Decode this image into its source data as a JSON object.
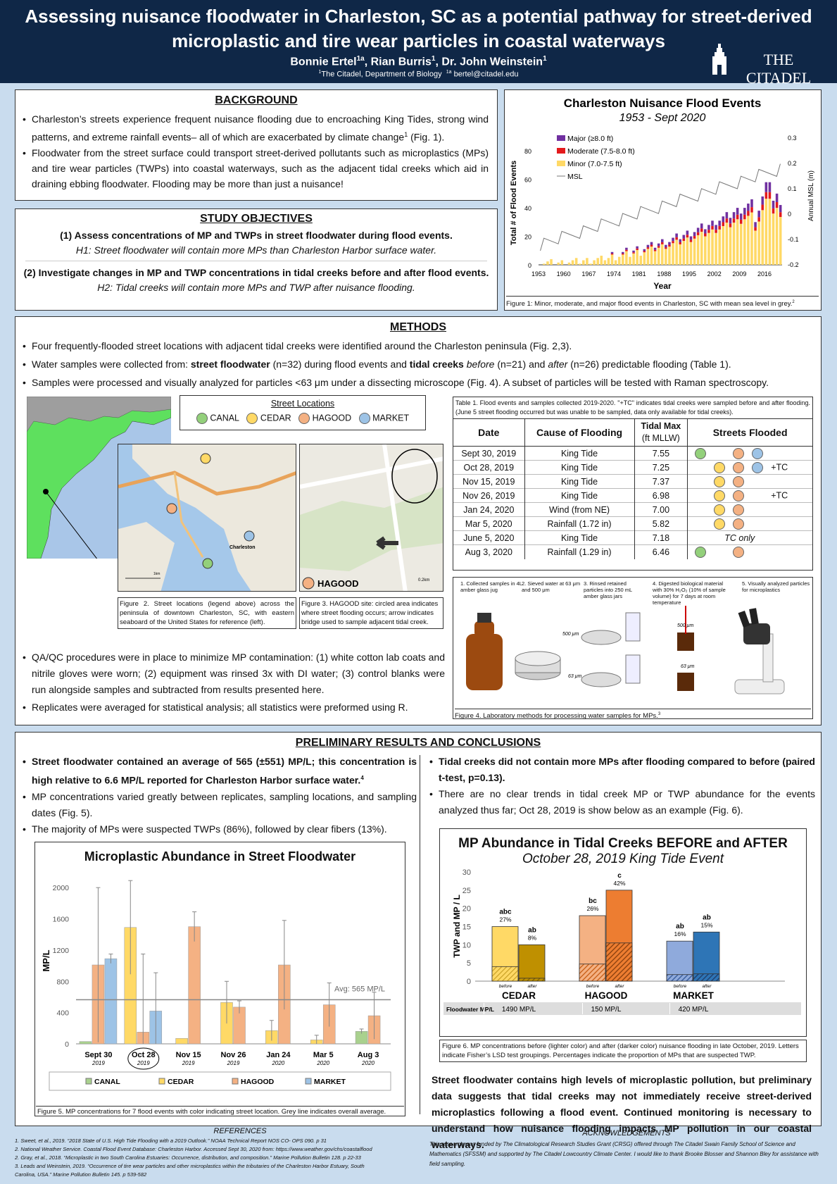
{
  "header": {
    "title_line1": "Assessing nuisance floodwater in Charleston, SC as a potential pathway for street-derived",
    "title_line2": "microplastic and tire wear particles in coastal waterways",
    "authors": "Bonnie Ertel",
    "a1_sup": "1a",
    "authors_2": ", Rian Burris",
    "a2_sup": "1",
    "authors_3": ", Dr. John Weinstein",
    "a3_sup": "1",
    "aff_sup": "1",
    "affiliation": "The Citadel, Department of Biology",
    "email_sup": "1a",
    "email": "bertel@citadel.edu",
    "logo_text": "THE CITADEL"
  },
  "background": {
    "title": "BACKGROUND",
    "b1": "Charleston’s streets experience frequent nuisance flooding due to encroaching King Tides, strong wind patterns, and extreme rainfall events– all of which are exacerbated by climate change",
    "b1_sup": "1",
    "b1_end": " (Fig. 1).",
    "b2": "Floodwater from the street surface could transport street-derived pollutants such as microplastics (MPs) and tire wear particles (TWPs) into coastal waterways, such as the adjacent tidal creeks which aid in draining ebbing floodwater. Flooding may be more than just a nuisance!"
  },
  "objectives": {
    "title": "STUDY OBJECTIVES",
    "o1": "(1) Assess concentrations of MP and TWPs in street floodwater during flood events.",
    "h1": "H1: Street floodwater will contain more MPs than Charleston Harbor surface water.",
    "o2": "(2) Investigate changes in MP and TWP concentrations in tidal creeks before and after flood events.",
    "h2": "H2: Tidal creeks will contain more MPs and TWP after nuisance flooding."
  },
  "fig1": {
    "title": "Charleston Nuisance Flood Events",
    "subtitle": "1953 - Sept 2020",
    "ylabel": "Total # of Flood Events",
    "y2label": "Annual MSL (m)",
    "xlabel": "Year",
    "legend": [
      "Major (≥8.0 ft)",
      "Moderate (7.5-8.0 ft)",
      "Minor (7.0-7.5 ft)",
      "MSL"
    ],
    "yticks": [
      "0",
      "20",
      "40",
      "60",
      "80"
    ],
    "y2ticks": [
      "-0.2",
      "-0.1",
      "0",
      "0.1",
      "0.2",
      "0.3"
    ],
    "xticks": [
      "1953",
      "1960",
      "1967",
      "1974",
      "1981",
      "1988",
      "1995",
      "2002",
      "2009",
      "2016"
    ],
    "caption": "Figure 1: Minor, moderate, and major flood events in Charleston, SC with mean sea level in grey.",
    "caption_sup": "2",
    "colors": {
      "major": "#7030a0",
      "moderate": "#e31a1c",
      "minor": "#ffd966",
      "msl": "#777777"
    }
  },
  "methods": {
    "title": "METHODS",
    "m1": "Four frequently-flooded street locations with adjacent tidal creeks were identified around the Charleston peninsula (Fig. 2,3).",
    "m2a": "Water samples were collected from: ",
    "m2b": "street floodwater",
    "m2c": " (n=32) during flood events and ",
    "m2d": "tidal creeks",
    "m2e": " ",
    "m2f": "before",
    "m2g": " (n=21) and ",
    "m2h": "after",
    "m2i": " (n=26) predictable flooding (Table 1).",
    "m3": "Samples were processed and visually analyzed for particles <63 μm under a dissecting microscope (Fig. 4). A subset of particles will be tested with Raman spectroscopy.",
    "qa": "QA/QC procedures were in place to minimize MP contamination: (1) white cotton lab coats and nitrile gloves were worn; (2) equipment was rinsed 3x with DI water; (3) control blanks were run alongside samples and subtracted from results presented here.",
    "rep": "Replicates were averaged for statistical analysis; all statistics were preformed using R."
  },
  "map": {
    "legend_title": "Street Locations",
    "sites": [
      "CANAL",
      "CEDAR",
      "HAGOOD",
      "MARKET"
    ],
    "city": "Charleston",
    "scale": "1km",
    "hagood": "HAGOOD",
    "hscale": "0.2km",
    "fig2": "Figure 2. Street locations (legend above) across the peninsula of downtown Charleston, SC, with eastern seaboard of the United States for reference (left).",
    "fig3": "Figure 3. HAGOOD site: circled area indicates where street flooding occurs; arrow indicates bridge used to sample adjacent tidal creek."
  },
  "table1": {
    "caption": "Table 1. Flood events and samples collected 2019-2020. \"+TC\" indicates tidal creeks were sampled before and after flooding. (June 5 street flooding occurred but was unable to be sampled, data only available for tidal creeks).",
    "headers": [
      "Date",
      "Cause of Flooding",
      "Tidal Max",
      "(ft MLLW)",
      "Streets Flooded"
    ],
    "rows": [
      {
        "date": "Sept 30, 2019",
        "cause": "King Tide",
        "max": "7.55",
        "dots": [
          "c",
          "h",
          "m"
        ],
        "tc": ""
      },
      {
        "date": "Oct 28, 2019",
        "cause": "King Tide",
        "max": "7.25",
        "dots": [
          "e",
          "h",
          "m"
        ],
        "tc": "+TC"
      },
      {
        "date": "Nov 15, 2019",
        "cause": "King Tide",
        "max": "7.37",
        "dots": [
          "e",
          "h"
        ],
        "tc": ""
      },
      {
        "date": "Nov 26, 2019",
        "cause": "King Tide",
        "max": "6.98",
        "dots": [
          "e",
          "h"
        ],
        "tc": "+TC"
      },
      {
        "date": "Jan 24, 2020",
        "cause": "Wind (from NE)",
        "max": "7.00",
        "dots": [
          "e",
          "h"
        ],
        "tc": ""
      },
      {
        "date": "Mar 5,  2020",
        "cause": "Rainfall (1.72 in)",
        "max": "5.82",
        "dots": [
          "e",
          "h"
        ],
        "tc": ""
      },
      {
        "date": "June 5,  2020",
        "cause": "King Tide",
        "max": "7.18",
        "dots": [],
        "tc": "TC only"
      },
      {
        "date": "Aug 3, 2020",
        "cause": "Rainfall (1.29 in)",
        "max": "6.46",
        "dots": [
          "c",
          "h"
        ],
        "tc": ""
      }
    ]
  },
  "fig4": {
    "steps": [
      "1. Collected samples in 4L amber glass jug",
      "2. Sieved water at 63 μm and 500 μm",
      "3. Rinsed retained particles into 250 mL amber glass jars",
      "4. Digested biological material with 30% H₂O₂ (10% of sample volume) for 7 days at room temperature",
      "5. Visually analyzed particles for microplastics"
    ],
    "l500": "500 μm",
    "l63": "63 μm",
    "caption": "Figure 4.  Laboratory methods for processing water samples for MPs.",
    "caption_sup": "3"
  },
  "results": {
    "title": "PRELIMINARY RESULTS AND CONCLUSIONS",
    "r1": "Street floodwater contained an average of 565 (±551) MP/L; this concentration is high relative to 6.6 MP/L reported for Charleston Harbor surface water.",
    "r1_sup": "4",
    "r2": "MP concentrations varied greatly between replicates, sampling locations, and sampling dates (Fig. 5).",
    "r3": "The majority of MPs were suspected TWPs (86%), followed by clear fibers (13%).",
    "r4": "Tidal creeks did not contain more MPs after flooding compared to before (paired t-test, p=0.13).",
    "r5": "There are no clear trends in tidal creek MP or TWP abundance for the events analyzed thus far; Oct 28, 2019 is show below as an example (Fig. 6).",
    "conclusion": "Street floodwater contains high levels of microplastic pollution, but preliminary data suggests that tidal creeks may not immediately receive street-derived microplastics following a flood event. Continued monitoring is necessary to understand how nuisance flooding impacts MP pollution in our coastal waterways."
  },
  "chart_data": [
    {
      "type": "bar",
      "title": "Microplastic Abundance in Street Floodwater",
      "ylabel": "MP/L",
      "ylim": [
        0,
        2200
      ],
      "yticks": [
        0,
        400,
        800,
        1200,
        1600,
        2000
      ],
      "categories": [
        "Sept 30",
        "Oct 28",
        "Nov 15",
        "Nov 26",
        "Jan 24",
        "Mar 5",
        "Aug 3"
      ],
      "years": [
        "2019",
        "2019",
        "2019",
        "2019",
        "2020",
        "2020",
        "2020"
      ],
      "series": [
        {
          "name": "CANAL",
          "color": "#a9d18e",
          "values": [
            30,
            null,
            null,
            null,
            null,
            null,
            160
          ],
          "err": [
            0,
            null,
            null,
            null,
            null,
            null,
            30
          ]
        },
        {
          "name": "CEDAR",
          "color": "#ffd966",
          "values": [
            null,
            1490,
            70,
            530,
            170,
            50,
            null
          ],
          "err": [
            null,
            600,
            0,
            270,
            130,
            60,
            null
          ]
        },
        {
          "name": "HAGOOD",
          "color": "#f4b183",
          "values": [
            1010,
            150,
            1500,
            470,
            1010,
            500,
            360
          ],
          "err": [
            990,
            1000,
            190,
            80,
            570,
            280,
            300
          ]
        },
        {
          "name": "MARKET",
          "color": "#9dc3e6",
          "values": [
            1090,
            420,
            null,
            null,
            null,
            null,
            null
          ],
          "err": [
            60,
            490,
            null,
            null,
            null,
            null,
            null
          ]
        }
      ],
      "avg": 565,
      "avg_label": "Avg: 565 MP/L",
      "caption": "Figure 5. MP concentrations for 7 flood events with color indicating street location. Grey line indicates overall average."
    },
    {
      "type": "bar",
      "title": "MP Abundance in Tidal Creeks BEFORE and AFTER",
      "subtitle": "October 28, 2019 King Tide Event",
      "ylabel": "TWP  and MP / L",
      "ylim": [
        0,
        30
      ],
      "yticks": [
        0,
        5,
        10,
        15,
        20,
        25,
        30
      ],
      "sites": [
        "CEDAR",
        "HAGOOD",
        "MARKET"
      ],
      "bars": [
        {
          "site": "CEDAR",
          "period": "before",
          "value": 15,
          "twp": 4,
          "letter": "abc",
          "pct": "27%",
          "color": "#ffd966",
          "dark": "#c9a227"
        },
        {
          "site": "CEDAR",
          "period": "after",
          "value": 10,
          "twp": 0.8,
          "letter": "ab",
          "pct": "8%",
          "color": "#bf9000",
          "dark": "#7f6000"
        },
        {
          "site": "HAGOOD",
          "period": "before",
          "value": 18,
          "twp": 4.7,
          "letter": "bc",
          "pct": "26%",
          "color": "#f4b183",
          "dark": "#c55a11"
        },
        {
          "site": "HAGOOD",
          "period": "after",
          "value": 25,
          "twp": 10.5,
          "letter": "c",
          "pct": "42%",
          "color": "#ed7d31",
          "dark": "#843c0c"
        },
        {
          "site": "MARKET",
          "period": "before",
          "value": 11,
          "twp": 1.8,
          "letter": "ab",
          "pct": "16%",
          "color": "#8faadc",
          "dark": "#2f5597"
        },
        {
          "site": "MARKET",
          "period": "after",
          "value": 13.5,
          "twp": 2,
          "letter": "ab",
          "pct": "15%",
          "color": "#2e75b6",
          "dark": "#1f3864"
        }
      ],
      "floodwater_label": "Floodwater MP/L",
      "floodwater": [
        "1490 MP/L",
        "150 MP/L",
        "420 MP/L"
      ],
      "caption": "Figure 6. MP concentrations before (lighter color) and after (darker color) nuisance flooding in late October, 2019. Letters indicate Fisher’s LSD test groupings. Percentages indicate the proportion of MPs that are suspected TWP."
    }
  ],
  "references": {
    "title": "REFERENCES",
    "items": [
      "1. Sweet, et al., 2019. “2018 State of U.S. High Tide Flooding with a 2019 Outlook.” NOAA Technical Report NOS    CO- OPS 090. p 31",
      "2. National Weather Service. Coastal Flood Event Database: Charleston Harbor. Accessed Sept 30, 2020 from: https://www.weather.gov/chs/coastalflood",
      "2. Gray,  et al., 2018. “Microplastic in two South Carolina Estuaries: Occurrence, distribution, and composition.” Marine Pollution Bulletin 128. p 22-33",
      "3. Leads and Weinstein, 2019. “Occurrence of tire wear particles and other microplastics within the tributaries of the Charleston Harbor Estuary, South",
      "    Carolina, USA.” Marine Pollution Bulletin 145. p 539-582"
    ]
  },
  "acknowledgements": {
    "title": "ACKNOWLEDGEMENTS",
    "text": "This research was funded by The Climatological Research Studies Grant (CRSG) offered through The Citadel Swain Family School of Science and Mathematics (SFSSM) and supported by The Citadel Lowcountry Climate Center. I would like to thank Brooke Blosser and Shannon Bley for assistance with field sampling."
  }
}
